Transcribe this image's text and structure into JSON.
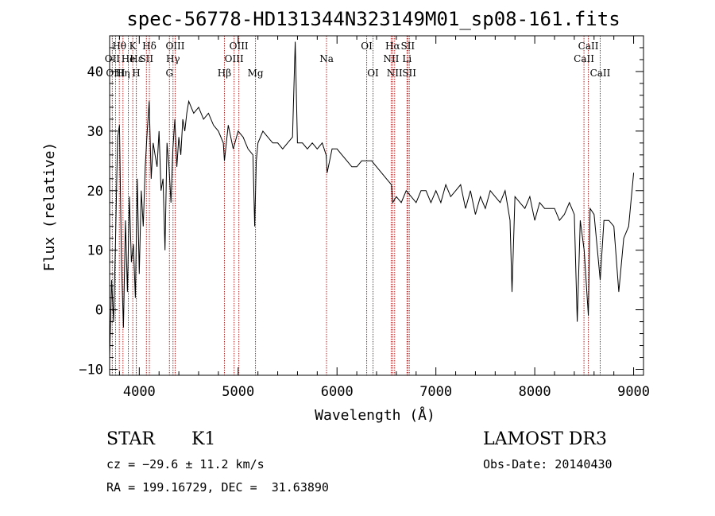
{
  "chart_data": {
    "type": "line",
    "title": "spec-56778-HD131344N323149M01_sp08-161.fits",
    "xlabel": "Wavelength (Å)",
    "ylabel": "Flux (relative)",
    "xlim": [
      3700,
      9100
    ],
    "ylim": [
      -11,
      46
    ],
    "x_ticks": [
      4000,
      5000,
      6000,
      7000,
      8000,
      9000
    ],
    "y_ticks": [
      -10,
      0,
      10,
      20,
      30,
      40
    ],
    "grid": false,
    "series": [
      {
        "color": "#000000",
        "x": [
          3700,
          3720,
          3740,
          3760,
          3780,
          3800,
          3820,
          3840,
          3860,
          3880,
          3900,
          3920,
          3940,
          3960,
          3980,
          4000,
          4020,
          4040,
          4060,
          4080,
          4100,
          4120,
          4140,
          4160,
          4180,
          4200,
          4220,
          4240,
          4260,
          4280,
          4300,
          4320,
          4340,
          4360,
          4380,
          4400,
          4420,
          4440,
          4460,
          4480,
          4500,
          4550,
          4600,
          4650,
          4700,
          4750,
          4800,
          4850,
          4861,
          4900,
          4950,
          5000,
          5050,
          5100,
          5150,
          5167,
          5183,
          5200,
          5250,
          5300,
          5350,
          5400,
          5450,
          5500,
          5550,
          5577,
          5600,
          5650,
          5700,
          5750,
          5800,
          5850,
          5890,
          5900,
          5950,
          6000,
          6050,
          6100,
          6150,
          6200,
          6250,
          6300,
          6350,
          6400,
          6450,
          6500,
          6550,
          6563,
          6600,
          6650,
          6700,
          6750,
          6800,
          6850,
          6900,
          6950,
          7000,
          7050,
          7100,
          7150,
          7200,
          7250,
          7300,
          7350,
          7400,
          7450,
          7500,
          7550,
          7600,
          7650,
          7700,
          7750,
          7770,
          7800,
          7850,
          7900,
          7950,
          8000,
          8050,
          8100,
          8150,
          8200,
          8250,
          8300,
          8350,
          8400,
          8430,
          8460,
          8500,
          8542,
          8560,
          8600,
          8662,
          8700,
          8750,
          8800,
          8850,
          8900,
          8950,
          9000
        ],
        "y": [
          -8,
          5,
          -2,
          12,
          29,
          31,
          8,
          -3,
          15,
          3,
          19,
          8,
          11,
          2,
          22,
          6,
          20,
          14,
          24,
          30,
          35,
          22,
          28,
          26,
          24,
          30,
          20,
          22,
          10,
          28,
          24,
          18,
          27,
          32,
          24,
          29,
          26,
          32,
          30,
          33,
          35,
          33,
          34,
          32,
          33,
          31,
          30,
          28,
          25,
          31,
          27,
          30,
          29,
          27,
          26,
          14,
          25,
          28,
          30,
          29,
          28,
          28,
          27,
          28,
          29,
          45,
          28,
          28,
          27,
          28,
          27,
          28,
          26,
          23,
          27,
          27,
          26,
          25,
          24,
          24,
          25,
          25,
          25,
          24,
          23,
          22,
          21,
          18,
          19,
          18,
          20,
          19,
          18,
          20,
          20,
          18,
          20,
          18,
          21,
          19,
          20,
          21,
          17,
          20,
          16,
          19,
          17,
          20,
          19,
          18,
          20,
          15,
          3,
          19,
          18,
          17,
          19,
          15,
          18,
          17,
          17,
          17,
          15,
          16,
          18,
          16,
          -2,
          15,
          10,
          -1,
          17,
          16,
          5,
          15,
          15,
          14,
          3,
          12,
          14,
          23
        ]
      }
    ],
    "lines": [
      {
        "label": "Hθ",
        "wavelength": 3798,
        "row": 0
      },
      {
        "label": "OII",
        "wavelength": 3727,
        "row": 1
      },
      {
        "label": "OIII",
        "wavelength": 3760,
        "row": 2
      },
      {
        "label": "K",
        "wavelength": 3934,
        "row": 0
      },
      {
        "label": "Hε",
        "wavelength": 3970,
        "row": 1
      },
      {
        "label": "Hη",
        "wavelength": 3835,
        "row": 2
      },
      {
        "label": "He",
        "wavelength": 3889,
        "row": 1
      },
      {
        "label": "H",
        "wavelength": 3969,
        "row": 2
      },
      {
        "label": "SII",
        "wavelength": 4072,
        "row": 1
      },
      {
        "label": "Hδ",
        "wavelength": 4102,
        "row": 0
      },
      {
        "label": "OIII",
        "wavelength": 4363,
        "row": 0
      },
      {
        "label": "Hγ",
        "wavelength": 4341,
        "row": 1
      },
      {
        "label": "G",
        "wavelength": 4305,
        "row": 2
      },
      {
        "label": "Hβ",
        "wavelength": 4861,
        "row": 2
      },
      {
        "label": "OIII",
        "wavelength": 5007,
        "row": 0
      },
      {
        "label": "OIII",
        "wavelength": 4959,
        "row": 1
      },
      {
        "label": "Mg",
        "wavelength": 5175,
        "row": 2
      },
      {
        "label": "Na",
        "wavelength": 5894,
        "row": 1
      },
      {
        "label": "OI",
        "wavelength": 6300,
        "row": 0
      },
      {
        "label": "OI",
        "wavelength": 6364,
        "row": 2
      },
      {
        "label": "Hα",
        "wavelength": 6563,
        "row": 0
      },
      {
        "label": "NII",
        "wavelength": 6548,
        "row": 1
      },
      {
        "label": "NII",
        "wavelength": 6583,
        "row": 2
      },
      {
        "label": "SII",
        "wavelength": 6716,
        "row": 0
      },
      {
        "label": "Li",
        "wavelength": 6708,
        "row": 1
      },
      {
        "label": "SII",
        "wavelength": 6731,
        "row": 2
      },
      {
        "label": "CaII",
        "wavelength": 8542,
        "row": 0
      },
      {
        "label": "CaII",
        "wavelength": 8498,
        "row": 1
      },
      {
        "label": "CaII",
        "wavelength": 8662,
        "row": 2
      }
    ]
  },
  "info": {
    "class_label": "STAR",
    "subclass_label": "K1",
    "survey": "LAMOST DR3",
    "cz": "cz = −29.6 ± 11.2 km/s",
    "obs_date": "Obs-Date: 20140430",
    "radec": "RA = 199.16729, DEC =  31.63890"
  }
}
